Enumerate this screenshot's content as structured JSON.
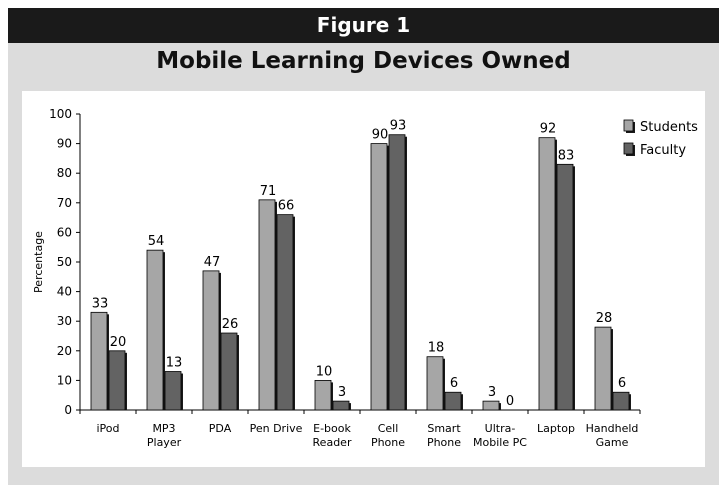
{
  "header": {
    "figure_label": "Figure 1"
  },
  "chart_data": {
    "type": "bar",
    "title": "Mobile Learning Devices Owned",
    "xlabel": "",
    "ylabel": "Percentage",
    "ylim": [
      0,
      100
    ],
    "yticks": [
      0,
      10,
      20,
      30,
      40,
      50,
      60,
      70,
      80,
      90,
      100
    ],
    "grid": false,
    "legend_position": "top-right",
    "categories": [
      [
        "iPod"
      ],
      [
        "MP3",
        "Player"
      ],
      [
        "PDA"
      ],
      [
        "Pen Drive"
      ],
      [
        "E-book",
        "Reader"
      ],
      [
        "Cell",
        "Phone"
      ],
      [
        "Smart",
        "Phone"
      ],
      [
        "Ultra-",
        "Mobile PC"
      ],
      [
        "Laptop"
      ],
      [
        "Handheld",
        "Game"
      ]
    ],
    "series": [
      {
        "name": "Students",
        "color": "#a6a6a6",
        "values": [
          33,
          54,
          47,
          71,
          10,
          90,
          18,
          3,
          92,
          28
        ]
      },
      {
        "name": "Faculty",
        "color": "#636363",
        "values": [
          20,
          13,
          26,
          66,
          3,
          93,
          6,
          0,
          83,
          6
        ]
      }
    ]
  }
}
